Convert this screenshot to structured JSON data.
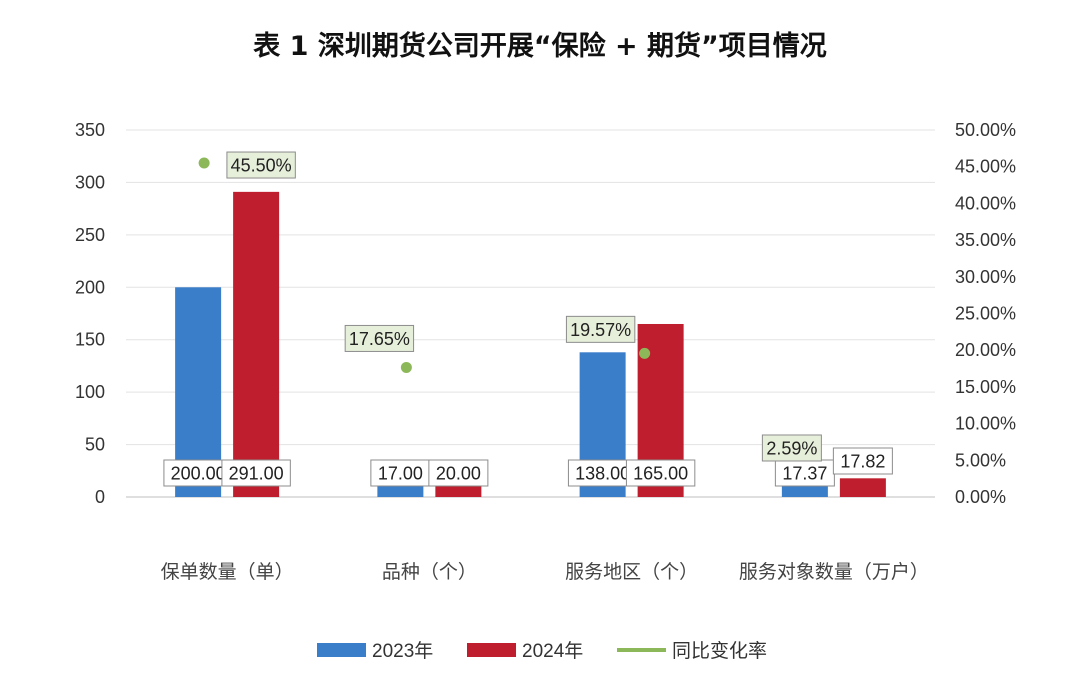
{
  "chart_data": {
    "type": "bar",
    "title": "表 1 深圳期货公司开展“保险 + 期货”项目情况",
    "categories": [
      "保单数量（单）",
      "品种（个）",
      "服务地区（个）",
      "服务对象数量（万户）"
    ],
    "series": [
      {
        "name": "2023年",
        "type": "bar",
        "axis": "left",
        "color": "#3A7DC9",
        "values": [
          200.0,
          17.0,
          138.0,
          17.37
        ],
        "labels": [
          "200.00",
          "17.00",
          "138.00",
          "17.37"
        ]
      },
      {
        "name": "2024年",
        "type": "bar",
        "axis": "left",
        "color": "#BE1E2D",
        "values": [
          291.0,
          20.0,
          165.0,
          17.82
        ],
        "labels": [
          "291.00",
          "20.00",
          "165.00",
          "17.82"
        ]
      },
      {
        "name": "同比变化率",
        "type": "scatter",
        "axis": "right",
        "color": "#8DB85A",
        "values": [
          45.5,
          17.65,
          19.57,
          2.59
        ],
        "labels": [
          "45.50%",
          "17.65%",
          "19.57%",
          "2.59%"
        ]
      }
    ],
    "ylim_left": [
      0,
      350
    ],
    "yticks_left": [
      "0",
      "50",
      "100",
      "150",
      "200",
      "250",
      "300",
      "350"
    ],
    "ylim_right": [
      0,
      50
    ],
    "yticks_right": [
      "0.00%",
      "5.00%",
      "10.00%",
      "15.00%",
      "20.00%",
      "25.00%",
      "30.00%",
      "35.00%",
      "40.00%",
      "45.00%",
      "50.00%"
    ],
    "grid": true,
    "legend": "bottom"
  }
}
